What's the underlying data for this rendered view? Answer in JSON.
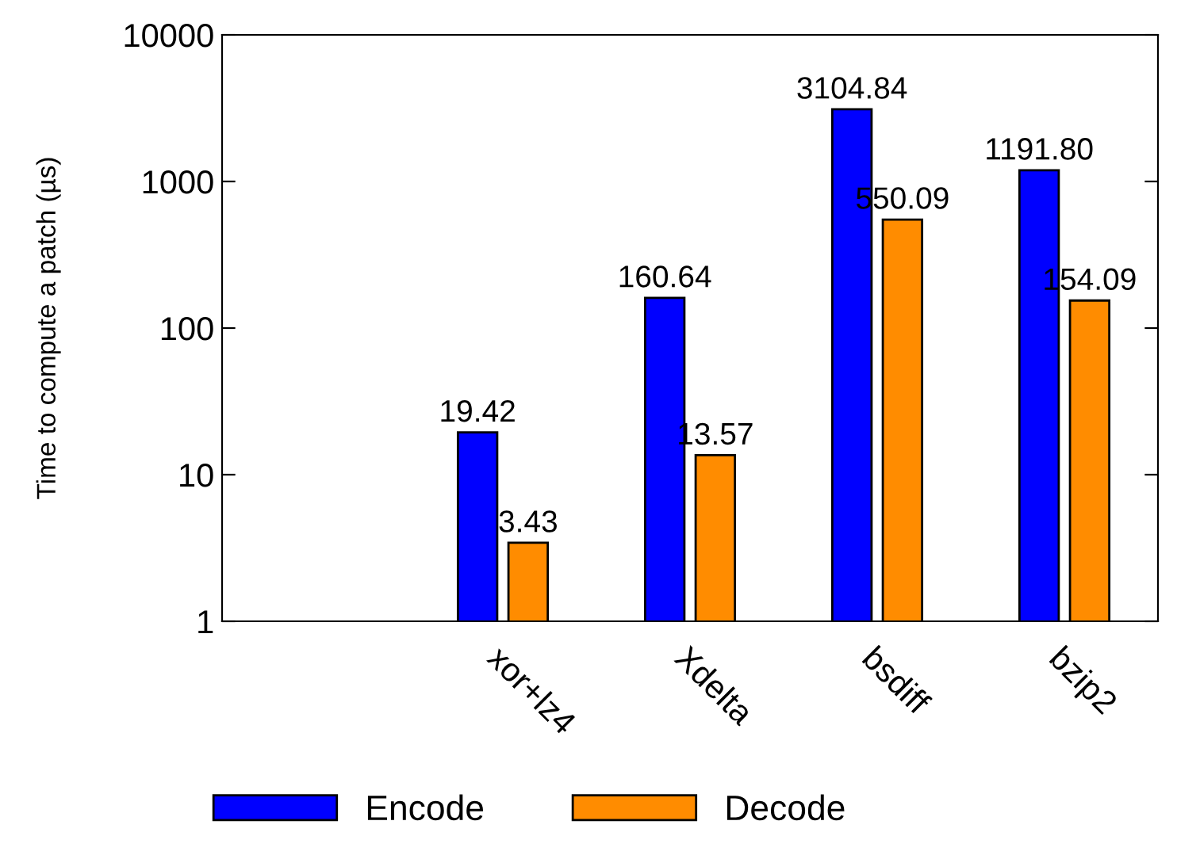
{
  "chart_data": {
    "type": "bar",
    "ylabel": "Time to compute a patch (µs)",
    "categories": [
      null,
      "xor+lz4",
      "Xdelta",
      "bsdiff",
      "bzip2"
    ],
    "series": [
      {
        "name": "Encode",
        "color": "#0000ff",
        "values": [
          null,
          19.42,
          160.64,
          3104.84,
          1191.8
        ],
        "value_labels": [
          null,
          "19.42",
          "160.64",
          "3104.84",
          "1191.80"
        ]
      },
      {
        "name": "Decode",
        "color": "#ff8c00",
        "values": [
          null,
          3.43,
          13.57,
          550.09,
          154.09
        ],
        "value_labels": [
          null,
          "3.43",
          "13.57",
          "550.09",
          "154.09"
        ]
      }
    ],
    "log": true,
    "ylim": [
      1,
      10000
    ],
    "yticks": [
      1,
      10,
      100,
      1000,
      10000
    ],
    "grid": false,
    "legend": "bottom"
  }
}
